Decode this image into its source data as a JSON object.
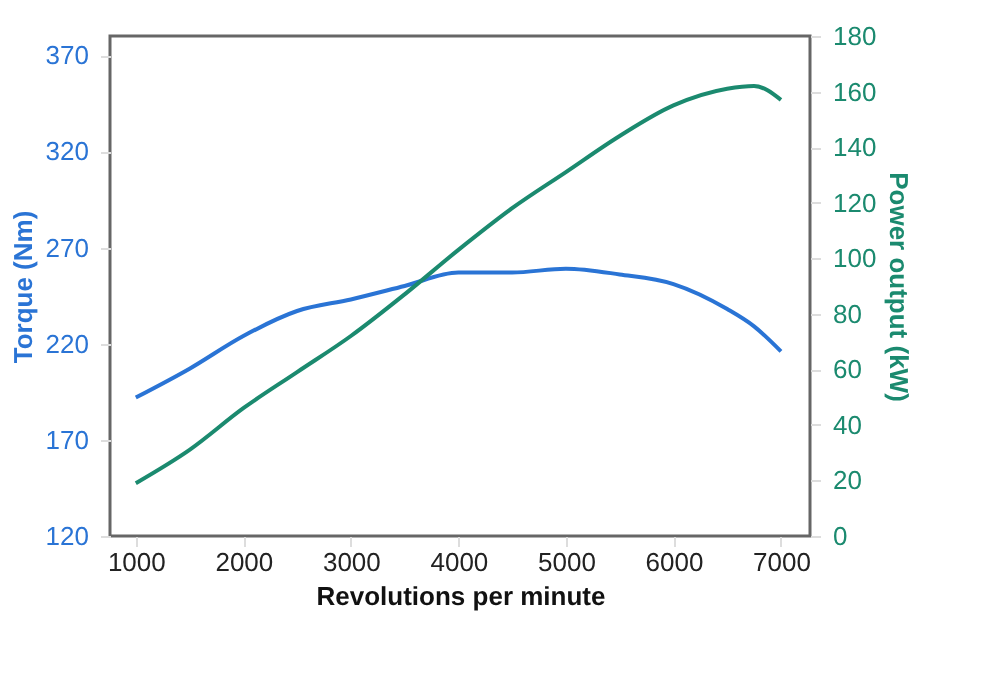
{
  "chart_data": {
    "type": "line",
    "xlabel": "Revolutions per minute",
    "ylabel": "Torque (Nm)",
    "y2label": "Power output (kW)",
    "x": [
      1000,
      1500,
      2000,
      2500,
      3000,
      3500,
      4000,
      4500,
      5000,
      5500,
      6000,
      6500,
      6750,
      7000
    ],
    "xlim": [
      760,
      7270
    ],
    "xticks": [
      1000,
      2000,
      3000,
      4000,
      5000,
      6000,
      7000
    ],
    "ylim": [
      120,
      380
    ],
    "yticks": [
      120,
      170,
      220,
      270,
      320,
      370
    ],
    "y2lim": [
      0,
      180
    ],
    "y2ticks": [
      0,
      20,
      40,
      60,
      80,
      100,
      120,
      140,
      160,
      180
    ],
    "grid": false,
    "marker": "none",
    "line_style": "solid",
    "series": [
      {
        "color": "#2a74d5",
        "values": [
          192,
          207,
          224,
          237,
          243,
          250,
          257,
          257,
          259,
          256,
          251,
          238,
          229,
          216
        ]
      },
      {
        "color": "#1b8a6f",
        "axis": "y2",
        "values": [
          19,
          31,
          46,
          59,
          72,
          87,
          103,
          118,
          131,
          144,
          155,
          161,
          162,
          157
        ]
      }
    ]
  }
}
